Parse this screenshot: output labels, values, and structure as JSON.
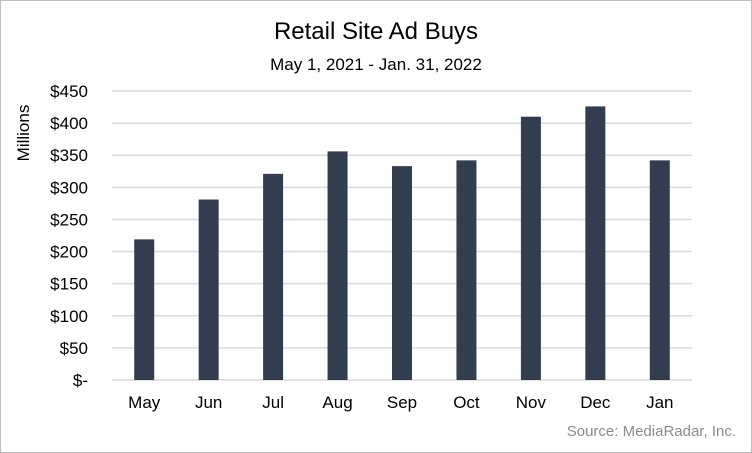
{
  "chart_data": {
    "type": "bar",
    "title": "Retail Site Ad Buys",
    "subtitle": "May 1, 2021 - Jan. 31, 2022",
    "xlabel": "",
    "ylabel": "Millions",
    "categories": [
      "May",
      "Jun",
      "Jul",
      "Aug",
      "Sep",
      "Oct",
      "Nov",
      "Dec",
      "Jan"
    ],
    "values": [
      219,
      281,
      321,
      356,
      333,
      342,
      410,
      426,
      342
    ],
    "ylim": [
      0,
      450
    ],
    "yticks": [
      0,
      50,
      100,
      150,
      200,
      250,
      300,
      350,
      400,
      450
    ],
    "ytick_labels": [
      "$-",
      "$50",
      "$100",
      "$150",
      "$200",
      "$250",
      "$300",
      "$350",
      "$400",
      "$450"
    ],
    "grid": true,
    "bar_color": "#323e4f",
    "grid_color": "#d9d9d9",
    "source": "Source: MediaRadar, Inc."
  }
}
